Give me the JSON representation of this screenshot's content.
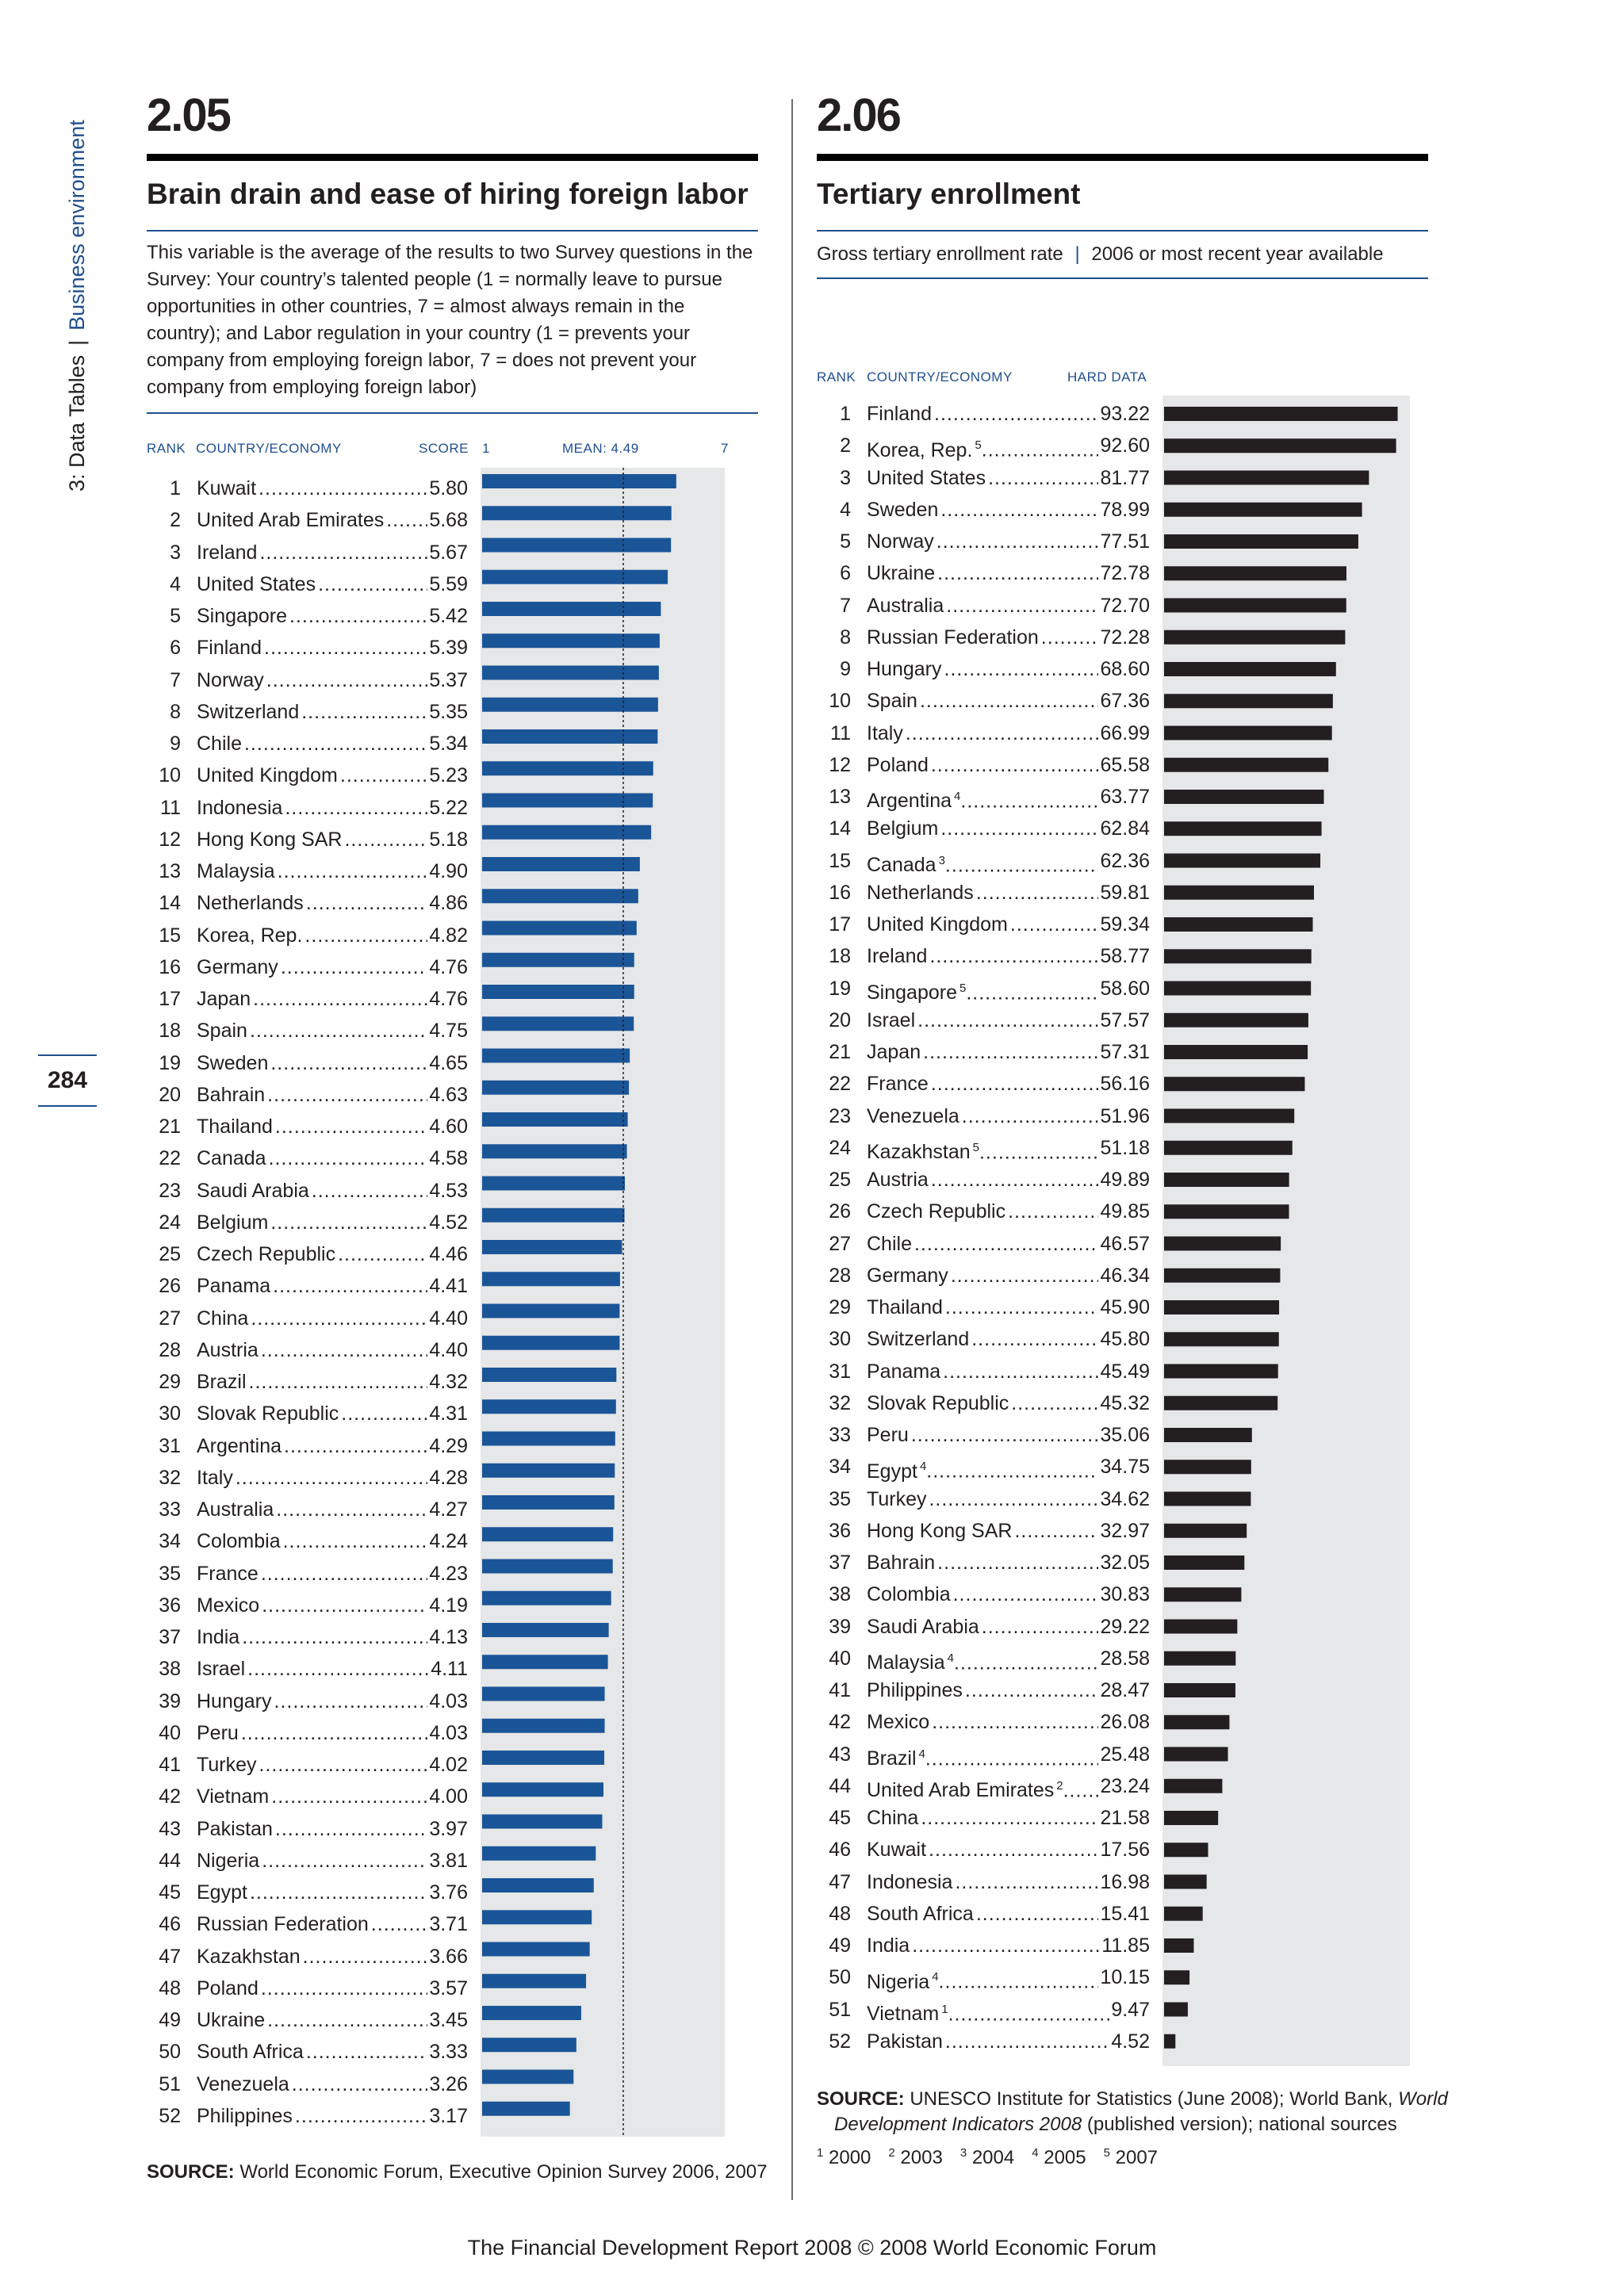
{
  "sidebar": {
    "chapter": "3: Data Tables",
    "section": "Business environment",
    "page_number": "284"
  },
  "footer": {
    "text": "The Financial Development Report 2008 © 2008 World Economic Forum"
  },
  "colors": {
    "left_bar": "#1a5597",
    "right_bar": "#231f20",
    "panel_bg": "#e6e7e8",
    "accent": "#1f4f8f"
  },
  "left": {
    "number": "2.05",
    "title": "Brain drain and ease of hiring foreign labor",
    "description": "This variable is the average of the results to two Survey questions in the Survey: Your country’s talented people (1 = normally leave to pursue opportunities in other countries, 7 = almost always remain in the country); and Labor regulation in your country (1 = prevents your company from employing foreign labor, 7 = does not prevent your company from employing foreign labor)",
    "header": {
      "rank": "RANK",
      "country": "COUNTRY/ECONOMY",
      "score": "SCORE",
      "axis_min": "1",
      "mean": "MEAN: 4.49",
      "axis_max": "7"
    },
    "source_label": "SOURCE:",
    "source_text": "World Economic Forum, Executive Opinion Survey 2006, 2007"
  },
  "right": {
    "number": "2.06",
    "title": "Tertiary enrollment",
    "subtitle_left": "Gross tertiary enrollment rate",
    "subtitle_sep": "|",
    "subtitle_right": "2006 or most recent year available",
    "header": {
      "rank": "RANK",
      "country": "COUNTRY/ECONOMY",
      "hard": "HARD DATA"
    },
    "source_label": "SOURCE:",
    "source_line1": "UNESCO Institute for Statistics (June 2008); World Bank,",
    "source_italic1": "World",
    "source_italic2": "Development Indicators 2008",
    "source_line2": "(published version); national sources",
    "footnotes": [
      {
        "sup": "1",
        "text": "2000"
      },
      {
        "sup": "2",
        "text": "2003"
      },
      {
        "sup": "3",
        "text": "2004"
      },
      {
        "sup": "4",
        "text": "2005"
      },
      {
        "sup": "5",
        "text": "2007"
      }
    ]
  },
  "chart_data": [
    {
      "type": "bar",
      "orientation": "horizontal",
      "title": "Brain drain and ease of hiring foreign labor",
      "xlim": [
        1,
        7
      ],
      "mean": 4.49,
      "categories": [
        "Kuwait",
        "United Arab Emirates",
        "Ireland",
        "United States",
        "Singapore",
        "Finland",
        "Norway",
        "Switzerland",
        "Chile",
        "United Kingdom",
        "Indonesia",
        "Hong Kong SAR",
        "Malaysia",
        "Netherlands",
        "Korea, Rep.",
        "Germany",
        "Japan",
        "Spain",
        "Sweden",
        "Bahrain",
        "Thailand",
        "Canada",
        "Saudi Arabia",
        "Belgium",
        "Czech Republic",
        "Panama",
        "China",
        "Austria",
        "Brazil",
        "Slovak Republic",
        "Argentina",
        "Italy",
        "Australia",
        "Colombia",
        "France",
        "Mexico",
        "India",
        "Israel",
        "Hungary",
        "Peru",
        "Turkey",
        "Vietnam",
        "Pakistan",
        "Nigeria",
        "Egypt",
        "Russian Federation",
        "Kazakhstan",
        "Poland",
        "Ukraine",
        "South Africa",
        "Venezuela",
        "Philippines"
      ],
      "values": [
        "5.80",
        "5.68",
        "5.67",
        "5.59",
        "5.42",
        "5.39",
        "5.37",
        "5.35",
        "5.34",
        "5.23",
        "5.22",
        "5.18",
        "4.90",
        "4.86",
        "4.82",
        "4.76",
        "4.76",
        "4.75",
        "4.65",
        "4.63",
        "4.60",
        "4.58",
        "4.53",
        "4.52",
        "4.46",
        "4.41",
        "4.40",
        "4.40",
        "4.32",
        "4.31",
        "4.29",
        "4.28",
        "4.27",
        "4.24",
        "4.23",
        "4.19",
        "4.13",
        "4.11",
        "4.03",
        "4.03",
        "4.02",
        "4.00",
        "3.97",
        "3.81",
        "3.76",
        "3.71",
        "3.66",
        "3.57",
        "3.45",
        "3.33",
        "3.26",
        "3.17"
      ]
    },
    {
      "type": "bar",
      "orientation": "horizontal",
      "title": "Tertiary enrollment",
      "categories": [
        "Finland",
        "Korea, Rep.",
        "United States",
        "Sweden",
        "Norway",
        "Ukraine",
        "Australia",
        "Russian Federation",
        "Hungary",
        "Spain",
        "Italy",
        "Poland",
        "Argentina",
        "Belgium",
        "Canada",
        "Netherlands",
        "United Kingdom",
        "Ireland",
        "Singapore",
        "Israel",
        "Japan",
        "France",
        "Venezuela",
        "Kazakhstan",
        "Austria",
        "Czech Republic",
        "Chile",
        "Germany",
        "Thailand",
        "Switzerland",
        "Panama",
        "Slovak Republic",
        "Peru",
        "Egypt",
        "Turkey",
        "Hong Kong SAR",
        "Bahrain",
        "Colombia",
        "Saudi Arabia",
        "Malaysia",
        "Philippines",
        "Mexico",
        "Brazil",
        "United Arab Emirates",
        "China",
        "Kuwait",
        "Indonesia",
        "South Africa",
        "India",
        "Nigeria",
        "Vietnam",
        "Pakistan"
      ],
      "footnote_marks": [
        "",
        "5",
        "",
        "",
        "",
        "",
        "",
        "",
        "",
        "",
        "",
        "",
        "4",
        "",
        "3",
        "",
        "",
        "",
        "5",
        "",
        "",
        "",
        "",
        "5",
        "",
        "",
        "",
        "",
        "",
        "",
        "",
        "",
        "",
        "4",
        "",
        "",
        "",
        "",
        "",
        "4",
        "",
        "",
        "4",
        "2",
        "",
        "",
        "",
        "",
        "",
        "4",
        "1",
        ""
      ],
      "values": [
        "93.22",
        "92.60",
        "81.77",
        "78.99",
        "77.51",
        "72.78",
        "72.70",
        "72.28",
        "68.60",
        "67.36",
        "66.99",
        "65.58",
        "63.77",
        "62.84",
        "62.36",
        "59.81",
        "59.34",
        "58.77",
        "58.60",
        "57.57",
        "57.31",
        "56.16",
        "51.96",
        "51.18",
        "49.89",
        "49.85",
        "46.57",
        "46.34",
        "45.90",
        "45.80",
        "45.49",
        "45.32",
        "35.06",
        "34.75",
        "34.62",
        "32.97",
        "32.05",
        "30.83",
        "29.22",
        "28.58",
        "28.47",
        "26.08",
        "25.48",
        "23.24",
        "21.58",
        "17.56",
        "16.98",
        "15.41",
        "11.85",
        "10.15",
        "9.47",
        "4.52"
      ],
      "xlim": [
        0,
        100
      ]
    }
  ]
}
